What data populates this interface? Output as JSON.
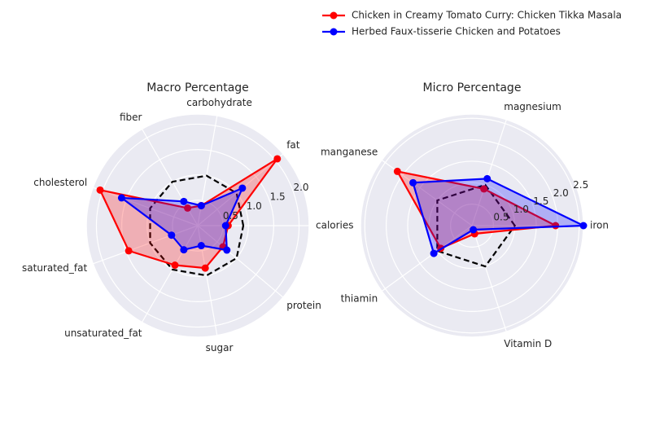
{
  "chart_data": {
    "type": "radar",
    "legend": {
      "placement": "top-right",
      "entries": [
        {
          "name": "Chicken in Creamy Tomato Curry: Chicken Tikka Masala",
          "color": "#ff0000"
        },
        {
          "name": "Herbed Faux-tisserie Chicken and Potatoes",
          "color": "#0000ff"
        }
      ]
    },
    "reference_style": {
      "color": "#000000",
      "dash": true
    },
    "charts": [
      {
        "title": "Macro Percentage",
        "axes": [
          "calories",
          "fat",
          "carbohydrate",
          "fiber",
          "cholesterol",
          "saturated_fat",
          "unsaturated_fat",
          "sugar",
          "protein"
        ],
        "rmax": 2.2,
        "rticks": [
          0.5,
          1.0,
          1.5,
          2.0
        ],
        "rtick_labels": [
          "0.5",
          "1.0",
          "1.5",
          "2.0"
        ],
        "series": [
          {
            "name": "Chicken in Creamy Tomato Curry: Chicken Tikka Masala",
            "color": "#ff0000",
            "values": [
              0.6,
              2.05,
              0.4,
              0.4,
              2.05,
              1.45,
              0.9,
              0.85,
              0.65
            ]
          },
          {
            "name": "Herbed Faux-tisserie Chicken and Potatoes",
            "color": "#0000ff",
            "values": [
              0.55,
              1.15,
              0.4,
              0.55,
              1.6,
              0.55,
              0.55,
              0.4,
              0.75
            ]
          }
        ],
        "reference": [
          0.9,
          1.0,
          1.0,
          1.0,
          1.0,
          1.0,
          1.0,
          1.0,
          1.0
        ]
      },
      {
        "title": "Micro Percentage",
        "axes": [
          "iron",
          "magnesium",
          "manganese",
          "thiamin",
          "Vitamin D"
        ],
        "rmax": 2.6,
        "rticks": [
          0.5,
          1.0,
          1.5,
          2.0,
          2.5
        ],
        "rtick_labels": [
          "0.5",
          "1.0",
          "1.5",
          "2.0",
          "2.5"
        ],
        "series": [
          {
            "name": "Chicken in Creamy Tomato Curry: Chicken Tikka Masala",
            "color": "#ff0000",
            "values": [
              1.95,
              0.9,
              2.15,
              0.9,
              0.2
            ]
          },
          {
            "name": "Herbed Faux-tisserie Chicken and Potatoes",
            "color": "#0000ff",
            "values": [
              2.6,
              1.15,
              1.7,
              1.1,
              0.1
            ]
          }
        ],
        "reference": [
          1.0,
          1.0,
          1.0,
          1.0,
          1.0
        ]
      }
    ]
  }
}
